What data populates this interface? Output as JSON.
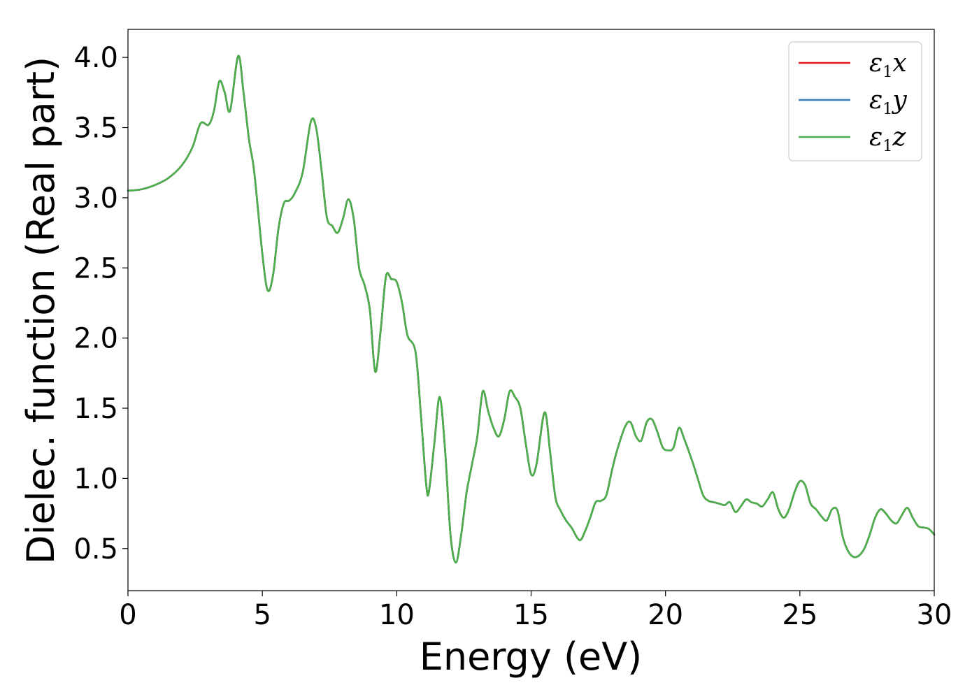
{
  "chart_data": {
    "type": "line",
    "title": "",
    "xlabel": "Energy (eV)",
    "ylabel": "Dielec. function (Real part)",
    "xlim": [
      0,
      30
    ],
    "ylim": [
      0.2,
      4.2
    ],
    "xticks": [
      0,
      5,
      10,
      15,
      20,
      25,
      30
    ],
    "xtick_labels": [
      "0",
      "5",
      "10",
      "15",
      "20",
      "25",
      "30"
    ],
    "yticks": [
      0.5,
      1.0,
      1.5,
      2.0,
      2.5,
      3.0,
      3.5,
      4.0
    ],
    "ytick_labels": [
      "0.5",
      "1.0",
      "1.5",
      "2.0",
      "2.5",
      "3.0",
      "3.5",
      "4.0"
    ],
    "grid": false,
    "legend_position": "top-right",
    "series_base": {
      "x": [
        0,
        0.5,
        1.0,
        1.5,
        2.0,
        2.4,
        2.7,
        3.0,
        3.2,
        3.4,
        3.6,
        3.8,
        4.1,
        4.3,
        4.5,
        4.7,
        5.0,
        5.2,
        5.4,
        5.6,
        5.8,
        6.0,
        6.2,
        6.5,
        6.8,
        7.0,
        7.2,
        7.4,
        7.6,
        7.8,
        8.0,
        8.2,
        8.4,
        8.6,
        8.8,
        9.0,
        9.2,
        9.4,
        9.6,
        9.8,
        10.0,
        10.2,
        10.4,
        10.7,
        10.9,
        11.1,
        11.2,
        11.4,
        11.6,
        11.8,
        12.0,
        12.2,
        12.4,
        12.6,
        12.8,
        13.0,
        13.2,
        13.4,
        13.6,
        13.8,
        14.0,
        14.2,
        14.4,
        14.6,
        14.8,
        15.0,
        15.2,
        15.5,
        15.7,
        15.9,
        16.1,
        16.3,
        16.5,
        16.8,
        17.0,
        17.2,
        17.4,
        17.6,
        17.8,
        18.0,
        18.2,
        18.5,
        18.7,
        18.9,
        19.1,
        19.3,
        19.5,
        19.7,
        19.9,
        20.1,
        20.3,
        20.5,
        20.7,
        21.0,
        21.2,
        21.4,
        21.6,
        21.8,
        22.0,
        22.2,
        22.4,
        22.6,
        22.8,
        23.0,
        23.2,
        23.4,
        23.6,
        23.8,
        24.0,
        24.2,
        24.4,
        24.6,
        24.8,
        25.0,
        25.2,
        25.4,
        25.6,
        25.8,
        26.0,
        26.2,
        26.4,
        26.6,
        26.8,
        27.0,
        27.2,
        27.4,
        27.6,
        27.8,
        28.0,
        28.2,
        28.4,
        28.6,
        28.8,
        29.0,
        29.2,
        29.4,
        29.6,
        29.8,
        30.0
      ],
      "y": [
        3.05,
        3.06,
        3.09,
        3.14,
        3.23,
        3.36,
        3.53,
        3.52,
        3.62,
        3.83,
        3.75,
        3.62,
        4.01,
        3.75,
        3.42,
        3.18,
        2.6,
        2.34,
        2.45,
        2.78,
        2.96,
        2.98,
        3.03,
        3.18,
        3.54,
        3.5,
        3.2,
        2.86,
        2.8,
        2.75,
        2.85,
        2.99,
        2.85,
        2.5,
        2.38,
        2.2,
        1.76,
        2.05,
        2.44,
        2.42,
        2.4,
        2.25,
        2.02,
        1.9,
        1.45,
        0.95,
        0.91,
        1.25,
        1.58,
        1.2,
        0.6,
        0.4,
        0.6,
        0.9,
        1.1,
        1.3,
        1.62,
        1.48,
        1.36,
        1.3,
        1.42,
        1.62,
        1.58,
        1.5,
        1.25,
        1.03,
        1.1,
        1.47,
        1.2,
        0.87,
        0.77,
        0.7,
        0.65,
        0.56,
        0.62,
        0.72,
        0.83,
        0.84,
        0.88,
        1.05,
        1.2,
        1.37,
        1.4,
        1.3,
        1.27,
        1.4,
        1.42,
        1.33,
        1.22,
        1.2,
        1.22,
        1.36,
        1.28,
        1.12,
        1.0,
        0.88,
        0.84,
        0.83,
        0.82,
        0.81,
        0.83,
        0.76,
        0.8,
        0.85,
        0.83,
        0.82,
        0.8,
        0.85,
        0.9,
        0.78,
        0.72,
        0.78,
        0.9,
        0.98,
        0.95,
        0.82,
        0.78,
        0.73,
        0.7,
        0.78,
        0.77,
        0.58,
        0.48,
        0.44,
        0.45,
        0.5,
        0.6,
        0.72,
        0.78,
        0.75,
        0.7,
        0.68,
        0.74,
        0.79,
        0.72,
        0.66,
        0.65,
        0.64,
        0.6
      ]
    },
    "series": [
      {
        "name": "ε₁x",
        "color": "#e41a1c",
        "same_values_as": "series_base"
      },
      {
        "name": "ε₁y",
        "color": "#377eb8",
        "same_values_as": "series_base"
      },
      {
        "name": "ε₁z",
        "color": "#4daf4a",
        "same_values_as": "series_base"
      }
    ],
    "legend": [
      {
        "base": "ε",
        "sub": "1",
        "var": "x"
      },
      {
        "base": "ε",
        "sub": "1",
        "var": "y"
      },
      {
        "base": "ε",
        "sub": "1",
        "var": "z"
      }
    ]
  }
}
